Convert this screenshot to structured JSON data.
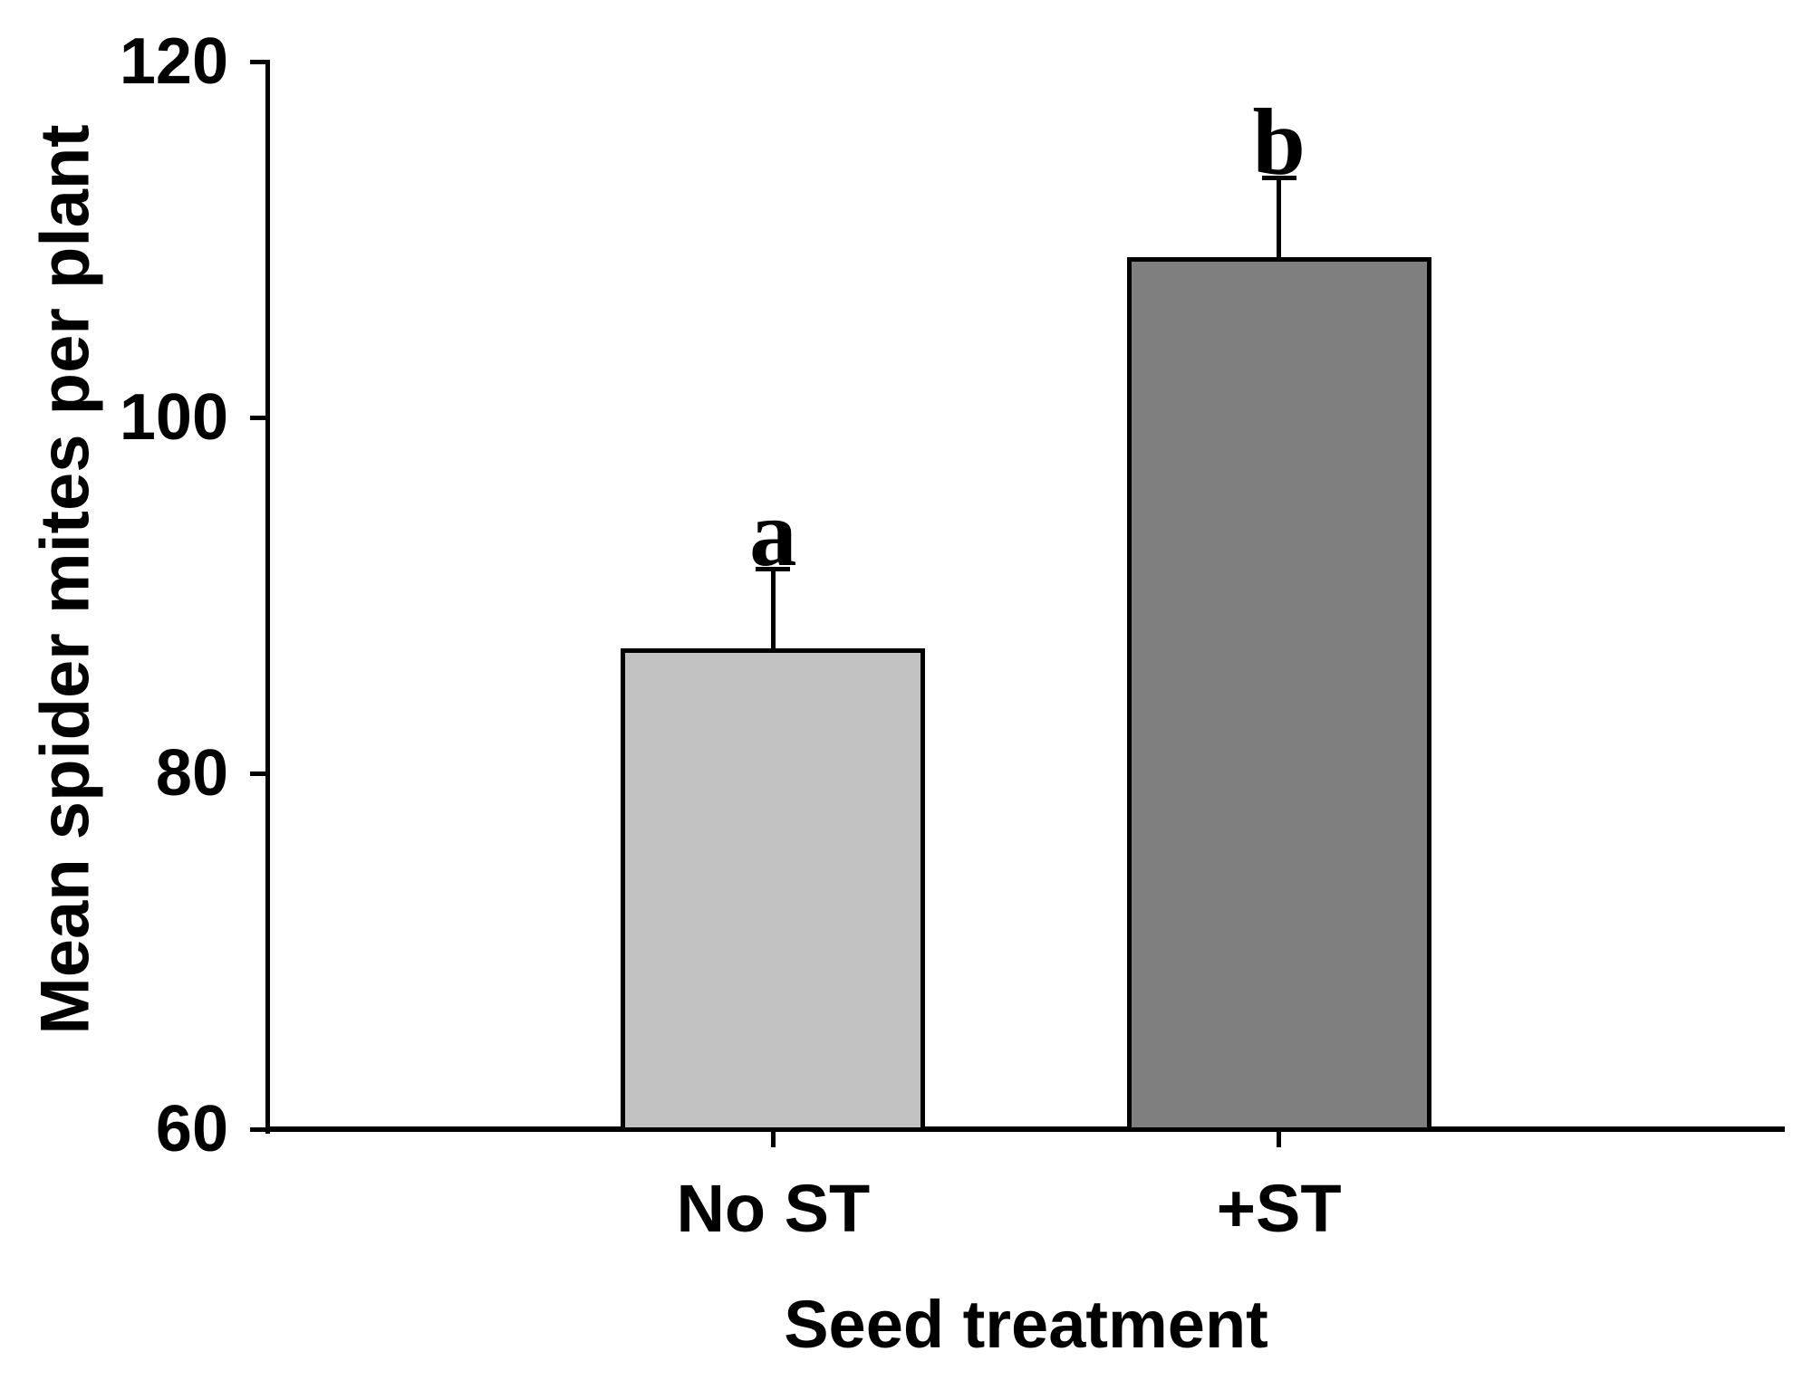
{
  "chart_data": {
    "type": "bar",
    "title": "",
    "xlabel": "Seed treatment",
    "ylabel": "Mean spider mites per plant",
    "categories": [
      "No ST",
      "+ST"
    ],
    "values": [
      87,
      109
    ],
    "errors_upper": [
      4.5,
      4.5
    ],
    "significance_letters": [
      "a",
      "b"
    ],
    "bar_colors": [
      "#c2c2c2",
      "#7f7f7f"
    ],
    "bar_border_color": "#000000",
    "axis_color": "#000000",
    "background_color": "#ffffff",
    "ylim": [
      60,
      120
    ],
    "yticks": [
      120,
      100,
      80,
      60
    ],
    "grid": false,
    "legend": "none",
    "error_bars": "upper only"
  }
}
